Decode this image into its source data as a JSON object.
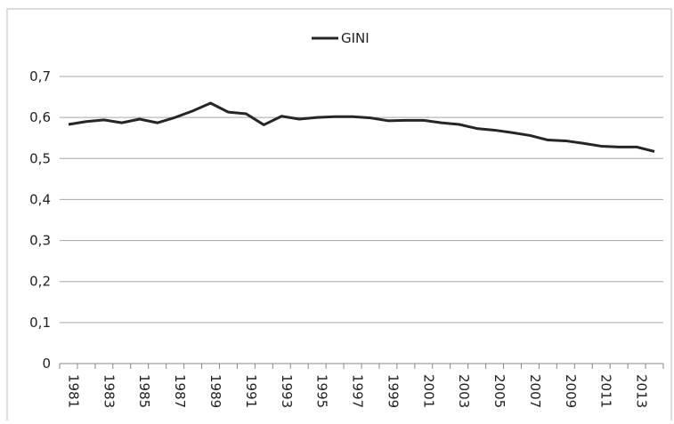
{
  "chart_data": {
    "type": "line",
    "categories": [
      "1981",
      null,
      "1983",
      null,
      "1985",
      null,
      "1987",
      null,
      "1989",
      null,
      "1991",
      null,
      "1993",
      null,
      "1995",
      null,
      "1997",
      null,
      "1999",
      null,
      "2001",
      null,
      "2003",
      null,
      "2005",
      null,
      "2007",
      null,
      "2009",
      null,
      "2011",
      null,
      "2013",
      null
    ],
    "series": [
      {
        "name": "GINI",
        "color": "#262626",
        "values": [
          0.583,
          0.59,
          0.594,
          0.587,
          0.596,
          0.587,
          0.6,
          0.616,
          0.635,
          0.613,
          0.609,
          0.582,
          0.603,
          0.596,
          0.6,
          0.602,
          0.602,
          0.599,
          0.592,
          0.593,
          0.593,
          0.587,
          0.583,
          0.573,
          0.569,
          0.563,
          0.556,
          0.545,
          0.543,
          0.537,
          0.53,
          0.528,
          0.528,
          0.517
        ]
      }
    ],
    "ylim": [
      0,
      0.7
    ],
    "yticks": [
      0,
      {
        "value": 0.1,
        "label": "0,1"
      },
      {
        "value": 0.2,
        "label": "0,2"
      },
      {
        "value": 0.3,
        "label": "0,3"
      },
      {
        "value": 0.4,
        "label": "0,4"
      },
      {
        "value": 0.5,
        "label": "0,5"
      },
      {
        "value": 0.6,
        "label": "0,6"
      },
      {
        "value": 0.7,
        "label": "0,7"
      }
    ],
    "grid": true,
    "legend": "top"
  }
}
